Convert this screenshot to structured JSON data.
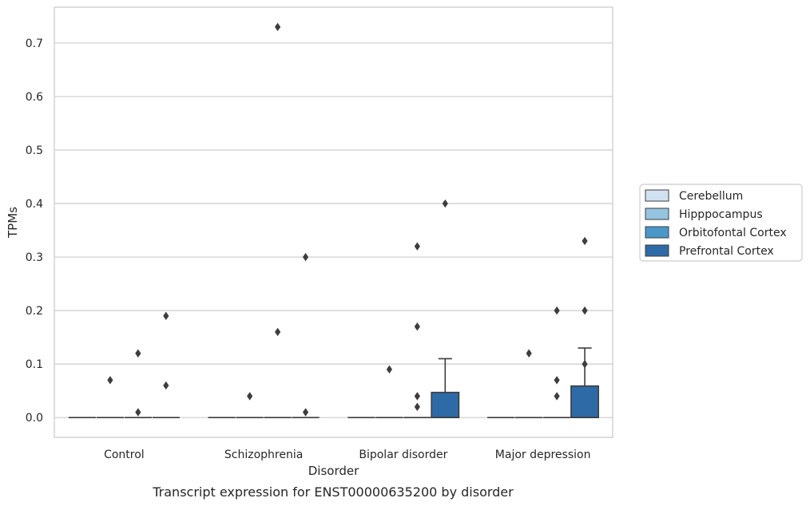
{
  "caption": "Transcript expression for ENST00000635200 by disorder",
  "chart_data": {
    "type": "box",
    "xlabel": "Disorder",
    "ylabel": "TPMs",
    "categories": [
      "Control",
      "Schizophrenia",
      "Bipolar disorder",
      "Major depression"
    ],
    "ylim": [
      -0.037,
      0.767
    ],
    "yticks": [
      0.0,
      0.1,
      0.2,
      0.3,
      0.4,
      0.5,
      0.6,
      0.7
    ],
    "ytick_labels": [
      "0.0",
      "0.1",
      "0.2",
      "0.3",
      "0.4",
      "0.5",
      "0.6",
      "0.7"
    ],
    "grid": "horizontal",
    "legend_position": "right",
    "series": [
      {
        "name": "Cerebellum",
        "color": "#d0e1f2",
        "boxes": [
          {
            "q1": 0,
            "median": 0,
            "q3": 0,
            "whisker_low": 0,
            "whisker_high": 0,
            "outliers": []
          },
          {
            "q1": 0,
            "median": 0,
            "q3": 0,
            "whisker_low": 0,
            "whisker_high": 0,
            "outliers": []
          },
          {
            "q1": 0,
            "median": 0,
            "q3": 0,
            "whisker_low": 0,
            "whisker_high": 0,
            "outliers": []
          },
          {
            "q1": 0,
            "median": 0,
            "q3": 0,
            "whisker_low": 0,
            "whisker_high": 0,
            "outliers": []
          }
        ]
      },
      {
        "name": "Hipppocampus",
        "color": "#94c4df",
        "boxes": [
          {
            "q1": 0,
            "median": 0,
            "q3": 0,
            "whisker_low": 0,
            "whisker_high": 0,
            "outliers": [
              0.07
            ]
          },
          {
            "q1": 0,
            "median": 0,
            "q3": 0,
            "whisker_low": 0,
            "whisker_high": 0,
            "outliers": [
              0.04
            ]
          },
          {
            "q1": 0,
            "median": 0,
            "q3": 0,
            "whisker_low": 0,
            "whisker_high": 0,
            "outliers": [
              0.09
            ]
          },
          {
            "q1": 0,
            "median": 0,
            "q3": 0,
            "whisker_low": 0,
            "whisker_high": 0,
            "outliers": [
              0.12
            ]
          }
        ]
      },
      {
        "name": "Orbitofontal Cortex",
        "color": "#4a98c9",
        "boxes": [
          {
            "q1": 0,
            "median": 0,
            "q3": 0,
            "whisker_low": 0,
            "whisker_high": 0,
            "outliers": [
              0.12,
              0.01
            ]
          },
          {
            "q1": 0,
            "median": 0,
            "q3": 0,
            "whisker_low": 0,
            "whisker_high": 0,
            "outliers": [
              0.16,
              0.73
            ]
          },
          {
            "q1": 0,
            "median": 0,
            "q3": 0,
            "whisker_low": 0,
            "whisker_high": 0,
            "outliers": [
              0.32,
              0.17,
              0.04
            ]
          },
          {
            "q1": 0,
            "median": 0,
            "q3": 0,
            "whisker_low": 0,
            "whisker_high": 0,
            "outliers": [
              0.07,
              0.04
            ]
          }
        ]
      },
      {
        "name": "Prefrontal Cortex",
        "color": "#2e6aa5",
        "boxes": [
          {
            "q1": 0,
            "median": 0,
            "q3": 0,
            "whisker_low": 0,
            "whisker_high": 0,
            "outliers": [
              0.19,
              0.06
            ]
          },
          {
            "q1": 0,
            "median": 0,
            "q3": 0,
            "whisker_low": 0,
            "whisker_high": 0,
            "outliers": [
              0.3,
              0.01
            ]
          },
          {
            "q1": 0,
            "median": 0,
            "q3": 0.047,
            "whisker_low": 0,
            "whisker_high": 0.11,
            "outliers": [
              0.4
            ]
          },
          {
            "q1": 0,
            "median": 0,
            "q3": 0.059,
            "whisker_low": 0,
            "whisker_high": 0.13,
            "outliers": [
              0.33,
              0.2,
              0.1
            ]
          }
        ]
      }
    ],
    "extra_outliers": [
      {
        "category": 2,
        "x_offset_hue": 2.5,
        "value": 0.02
      },
      {
        "category": 3,
        "x_offset_hue": 2.5,
        "value": 0.2
      }
    ]
  }
}
